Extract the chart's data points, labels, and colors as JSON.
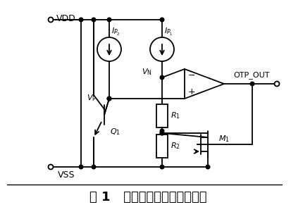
{
  "title": "图 1   传统过温保护电路原理图",
  "title_fontsize": 13,
  "bg_color": "#ffffff",
  "line_color": "#000000",
  "figsize": [
    4.13,
    3.01
  ],
  "dpi": 100,
  "vdd_label": "VDD",
  "vss_label": "VSS",
  "otp_label": "OTP_OUT",
  "ip2_label": "$I_{P_2}$",
  "ip1_label": "$I_{P_1}$",
  "vp_label": "$V_{\\mathrm{P}}$",
  "vn_label": "$V_{\\mathrm{N}}$",
  "r1_label": "$R_1$",
  "r2_label": "$R_2$",
  "q1_label": "$Q_1$",
  "m1_label": "$M_1$"
}
